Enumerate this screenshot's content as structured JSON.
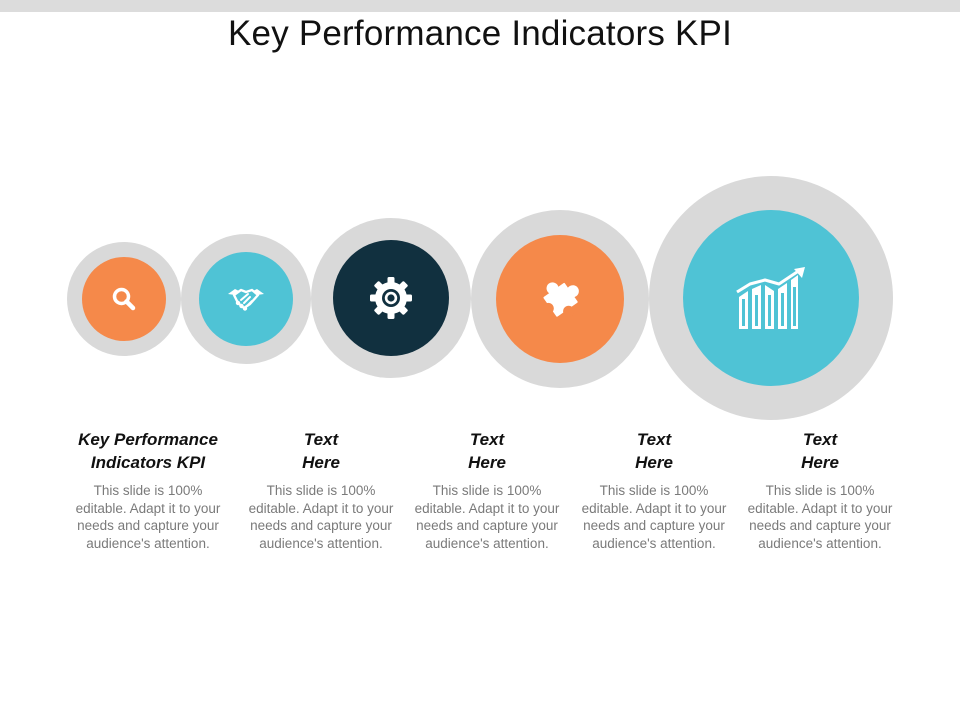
{
  "title": "Key Performance Indicators KPI",
  "colors": {
    "orange": "#f5894a",
    "teal": "#4fc3d5",
    "navy": "#11303f",
    "ring": "#d9d9d9"
  },
  "items": [
    {
      "heading_line1": "Key Performance",
      "heading_line2": "Indicators KPI",
      "description": "This slide is 100% editable. Adapt it to your needs and capture your audience's attention.",
      "icon": "search-icon"
    },
    {
      "heading_line1": "Text",
      "heading_line2": "Here",
      "description": "This slide is 100% editable. Adapt it to your needs and capture your audience's attention.",
      "icon": "handshake-icon"
    },
    {
      "heading_line1": "Text",
      "heading_line2": "Here",
      "description": "This slide is 100% editable. Adapt it to your needs and capture your audience's attention.",
      "icon": "gear-icon"
    },
    {
      "heading_line1": "Text",
      "heading_line2": "Here",
      "description": "This slide is 100% editable. Adapt it to your needs and capture your audience's attention.",
      "icon": "puzzle-icon"
    },
    {
      "heading_line1": "Text",
      "heading_line2": "Here",
      "description": "This slide is 100% editable. Adapt it to your needs and capture your audience's attention.",
      "icon": "growth-chart-icon"
    }
  ]
}
